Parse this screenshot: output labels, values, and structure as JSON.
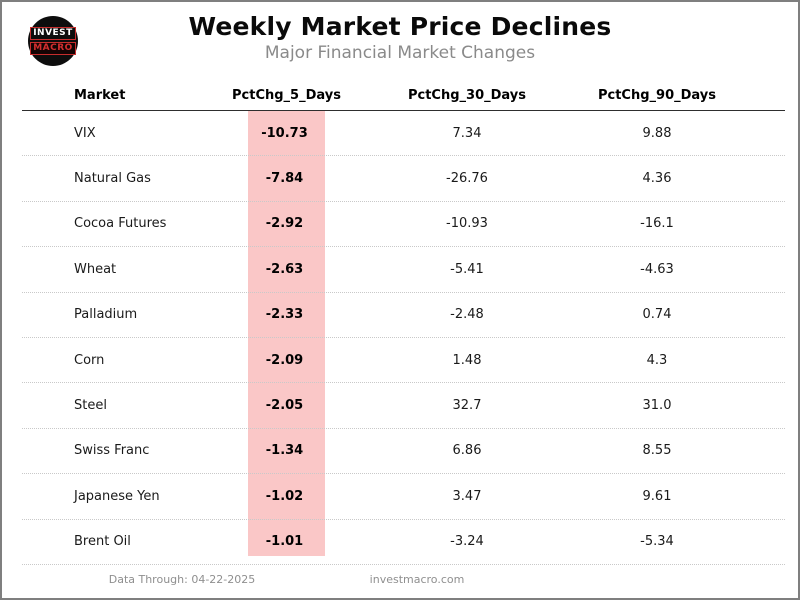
{
  "logo": {
    "line1": "INVEST",
    "line2": "MACRO"
  },
  "footer": {
    "data_through": "Data Through: 04-22-2025",
    "site": "investmacro.com"
  },
  "colors": {
    "highlight_pink": "#fac7c7",
    "logo_red": "#c62d2d",
    "subtitle_gray": "#8a8a8a",
    "border_gray": "#7f7f7f"
  },
  "chart_data": {
    "type": "table",
    "title": "Weekly Market Price Declines",
    "subtitle": "Major Financial Market Changes",
    "columns": [
      "Market",
      "PctChg_5_Days",
      "PctChg_30_Days",
      "PctChg_90_Days"
    ],
    "highlighted_column": "PctChg_5_Days",
    "rows": [
      [
        "VIX",
        "-10.73",
        "7.34",
        "9.88"
      ],
      [
        "Natural Gas",
        "-7.84",
        "-26.76",
        "4.36"
      ],
      [
        "Cocoa Futures",
        "-2.92",
        "-10.93",
        "-16.1"
      ],
      [
        "Wheat",
        "-2.63",
        "-5.41",
        "-4.63"
      ],
      [
        "Palladium",
        "-2.33",
        "-2.48",
        "0.74"
      ],
      [
        "Corn",
        "-2.09",
        "1.48",
        "4.3"
      ],
      [
        "Steel",
        "-2.05",
        "32.7",
        "31.0"
      ],
      [
        "Swiss Franc",
        "-1.34",
        "6.86",
        "8.55"
      ],
      [
        "Japanese Yen",
        "-1.02",
        "3.47",
        "9.61"
      ],
      [
        "Brent Oil",
        "-1.01",
        "-3.24",
        "-5.34"
      ]
    ]
  }
}
